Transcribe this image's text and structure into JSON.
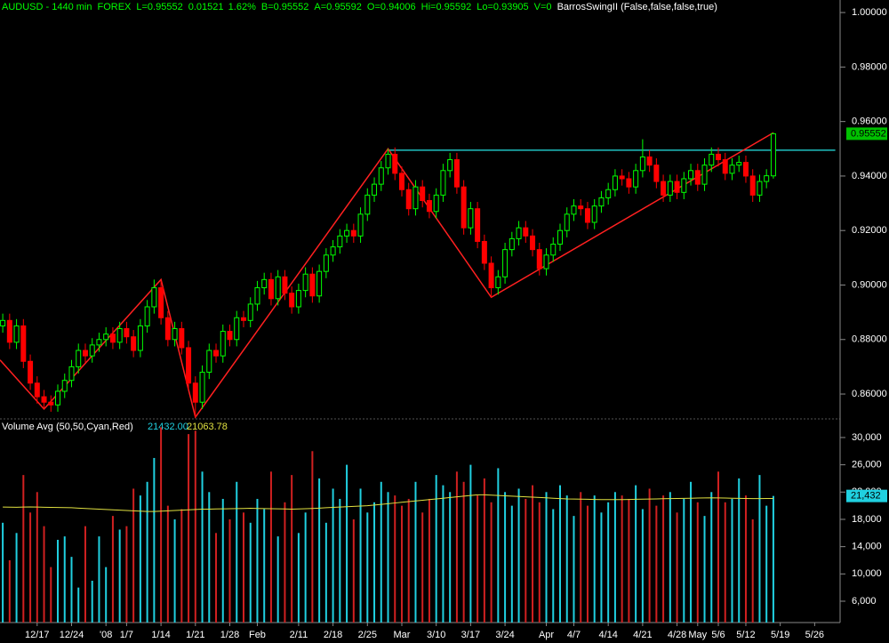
{
  "chart_data": [
    {
      "type": "candlestick",
      "header": [
        "AUDUSD - 1440 min",
        "FOREX",
        "L=0.95552",
        "0.01521",
        "1.62%",
        "B=0.95552",
        "A=0.95592",
        "O=0.94006",
        "Hi=0.95592",
        "Lo=0.93905",
        "V=0",
        "BarrosSwingII (False,false,false,true)"
      ],
      "up_color": "#00ff00",
      "down_color": "#ff0000",
      "xlim": [
        -0.4,
        121.7
      ],
      "ylim": [
        0.8512,
        1.0046
      ],
      "yticks": [
        {
          "value": 0.86,
          "label": "0.86000"
        },
        {
          "value": 0.88,
          "label": "0.88000"
        },
        {
          "value": 0.9,
          "label": "0.90000"
        },
        {
          "value": 0.92,
          "label": "0.92000"
        },
        {
          "value": 0.94,
          "label": "0.94000"
        },
        {
          "value": 0.96,
          "label": "0.96000"
        },
        {
          "value": 0.98,
          "label": "0.98000"
        },
        {
          "value": 1.0,
          "label": "1.00000"
        }
      ],
      "last_price": 0.95552,
      "ohlc": [
        [
          0.885,
          0.8895,
          0.8825,
          0.887
        ],
        [
          0.887,
          0.8895,
          0.8765,
          0.879
        ],
        [
          0.879,
          0.8875,
          0.8765,
          0.885
        ],
        [
          0.885,
          0.8875,
          0.8695,
          0.872
        ],
        [
          0.872,
          0.8745,
          0.8615,
          0.864
        ],
        [
          0.864,
          0.8665,
          0.8565,
          0.859
        ],
        [
          0.859,
          0.8615,
          0.8545,
          0.857
        ],
        [
          0.857,
          0.8595,
          0.8535,
          0.856
        ],
        [
          0.856,
          0.8635,
          0.8535,
          0.861
        ],
        [
          0.861,
          0.8675,
          0.8585,
          0.865
        ],
        [
          0.865,
          0.8725,
          0.8625,
          0.87
        ],
        [
          0.87,
          0.8785,
          0.8675,
          0.876
        ],
        [
          0.876,
          0.8785,
          0.8715,
          0.874
        ],
        [
          0.874,
          0.8805,
          0.8715,
          0.878
        ],
        [
          0.878,
          0.8825,
          0.8755,
          0.88
        ],
        [
          0.88,
          0.8845,
          0.8775,
          0.882
        ],
        [
          0.882,
          0.8845,
          0.8765,
          0.879
        ],
        [
          0.879,
          0.8865,
          0.8765,
          0.884
        ],
        [
          0.884,
          0.8865,
          0.8785,
          0.881
        ],
        [
          0.881,
          0.8835,
          0.8735,
          0.876
        ],
        [
          0.876,
          0.8875,
          0.8735,
          0.885
        ],
        [
          0.885,
          0.8945,
          0.8825,
          0.892
        ],
        [
          0.892,
          0.902,
          0.8895,
          0.899
        ],
        [
          0.899,
          0.9015,
          0.8855,
          0.888
        ],
        [
          0.888,
          0.8905,
          0.8775,
          0.88
        ],
        [
          0.88,
          0.8865,
          0.8775,
          0.884
        ],
        [
          0.884,
          0.8865,
          0.8745,
          0.877
        ],
        [
          0.877,
          0.8795,
          0.8615,
          0.864
        ],
        [
          0.864,
          0.8665,
          0.8515,
          0.857
        ],
        [
          0.857,
          0.8705,
          0.8545,
          0.868
        ],
        [
          0.868,
          0.8785,
          0.8655,
          0.876
        ],
        [
          0.876,
          0.8785,
          0.8715,
          0.874
        ],
        [
          0.874,
          0.8855,
          0.8715,
          0.883
        ],
        [
          0.883,
          0.8855,
          0.8775,
          0.88
        ],
        [
          0.88,
          0.8905,
          0.8775,
          0.888
        ],
        [
          0.888,
          0.8905,
          0.8845,
          0.887
        ],
        [
          0.887,
          0.8955,
          0.8845,
          0.893
        ],
        [
          0.893,
          0.9015,
          0.8905,
          0.899
        ],
        [
          0.899,
          0.9045,
          0.8965,
          0.902
        ],
        [
          0.902,
          0.9045,
          0.8925,
          0.895
        ],
        [
          0.895,
          0.9055,
          0.8925,
          0.903
        ],
        [
          0.903,
          0.9055,
          0.8945,
          0.897
        ],
        [
          0.897,
          0.8995,
          0.8895,
          0.892
        ],
        [
          0.892,
          0.9005,
          0.8895,
          0.898
        ],
        [
          0.898,
          0.9065,
          0.8955,
          0.904
        ],
        [
          0.904,
          0.9065,
          0.8935,
          0.896
        ],
        [
          0.896,
          0.9075,
          0.8935,
          0.905
        ],
        [
          0.905,
          0.9135,
          0.9025,
          0.911
        ],
        [
          0.911,
          0.9165,
          0.9085,
          0.914
        ],
        [
          0.914,
          0.9205,
          0.9115,
          0.918
        ],
        [
          0.918,
          0.9225,
          0.9155,
          0.92
        ],
        [
          0.92,
          0.9225,
          0.9155,
          0.918
        ],
        [
          0.918,
          0.9285,
          0.9155,
          0.926
        ],
        [
          0.926,
          0.9355,
          0.9235,
          0.933
        ],
        [
          0.933,
          0.9395,
          0.9305,
          0.937
        ],
        [
          0.937,
          0.9455,
          0.9345,
          0.943
        ],
        [
          0.943,
          0.95,
          0.9405,
          0.948
        ],
        [
          0.948,
          0.9505,
          0.9385,
          0.941
        ],
        [
          0.941,
          0.9435,
          0.9325,
          0.935
        ],
        [
          0.935,
          0.9375,
          0.9255,
          0.928
        ],
        [
          0.928,
          0.9385,
          0.9255,
          0.936
        ],
        [
          0.936,
          0.9385,
          0.9285,
          0.931
        ],
        [
          0.931,
          0.9335,
          0.9245,
          0.927
        ],
        [
          0.927,
          0.9355,
          0.9245,
          0.933
        ],
        [
          0.933,
          0.9445,
          0.9305,
          0.942
        ],
        [
          0.942,
          0.9485,
          0.9395,
          0.946
        ],
        [
          0.946,
          0.9485,
          0.9335,
          0.936
        ],
        [
          0.936,
          0.9385,
          0.9185,
          0.921
        ],
        [
          0.921,
          0.9305,
          0.9185,
          0.928
        ],
        [
          0.928,
          0.9305,
          0.9135,
          0.916
        ],
        [
          0.916,
          0.9185,
          0.9055,
          0.908
        ],
        [
          0.908,
          0.9105,
          0.8955,
          0.899
        ],
        [
          0.899,
          0.9055,
          0.8965,
          0.903
        ],
        [
          0.903,
          0.9155,
          0.9005,
          0.913
        ],
        [
          0.913,
          0.9195,
          0.9105,
          0.917
        ],
        [
          0.917,
          0.9235,
          0.9145,
          0.921
        ],
        [
          0.921,
          0.9235,
          0.9155,
          0.918
        ],
        [
          0.918,
          0.9205,
          0.9105,
          0.913
        ],
        [
          0.913,
          0.9155,
          0.9035,
          0.906
        ],
        [
          0.906,
          0.9135,
          0.9035,
          0.911
        ],
        [
          0.911,
          0.9175,
          0.9085,
          0.915
        ],
        [
          0.915,
          0.9225,
          0.9125,
          0.92
        ],
        [
          0.92,
          0.9285,
          0.9175,
          0.926
        ],
        [
          0.926,
          0.9315,
          0.9235,
          0.929
        ],
        [
          0.929,
          0.9315,
          0.9255,
          0.928
        ],
        [
          0.928,
          0.9305,
          0.9205,
          0.923
        ],
        [
          0.923,
          0.9315,
          0.9205,
          0.929
        ],
        [
          0.929,
          0.9345,
          0.9265,
          0.932
        ],
        [
          0.932,
          0.9375,
          0.9295,
          0.935
        ],
        [
          0.935,
          0.9425,
          0.9325,
          0.94
        ],
        [
          0.94,
          0.9425,
          0.9365,
          0.939
        ],
        [
          0.939,
          0.9415,
          0.9335,
          0.936
        ],
        [
          0.936,
          0.9445,
          0.9335,
          0.942
        ],
        [
          0.942,
          0.9535,
          0.9395,
          0.947
        ],
        [
          0.947,
          0.9495,
          0.9415,
          0.944
        ],
        [
          0.944,
          0.9465,
          0.9355,
          0.938
        ],
        [
          0.938,
          0.9405,
          0.9305,
          0.933
        ],
        [
          0.933,
          0.9405,
          0.9305,
          0.938
        ],
        [
          0.938,
          0.9405,
          0.9315,
          0.934
        ],
        [
          0.934,
          0.9415,
          0.9315,
          0.939
        ],
        [
          0.939,
          0.9445,
          0.9365,
          0.942
        ],
        [
          0.942,
          0.9445,
          0.9345,
          0.937
        ],
        [
          0.937,
          0.9465,
          0.9345,
          0.944
        ],
        [
          0.944,
          0.9505,
          0.9415,
          0.948
        ],
        [
          0.948,
          0.9505,
          0.9435,
          0.946
        ],
        [
          0.946,
          0.9485,
          0.9385,
          0.941
        ],
        [
          0.941,
          0.9465,
          0.9385,
          0.944
        ],
        [
          0.944,
          0.9475,
          0.9415,
          0.945
        ],
        [
          0.945,
          0.9475,
          0.9375,
          0.94
        ],
        [
          0.94,
          0.9425,
          0.9305,
          0.933
        ],
        [
          0.933,
          0.9405,
          0.9305,
          0.938
        ],
        [
          0.938,
          0.9425,
          0.9355,
          0.9401
        ],
        [
          0.94006,
          0.95592,
          0.93905,
          0.95552
        ]
      ],
      "swing": {
        "color": "#ff2020",
        "x": [
          -0.4,
          6,
          23,
          28,
          56,
          71,
          112
        ],
        "values": [
          0.8725,
          0.8545,
          0.902,
          0.8515,
          0.95,
          0.8955,
          0.9559
        ]
      },
      "level": {
        "color": "#20c0c0",
        "x": [
          56,
          121
        ],
        "values": [
          0.9495,
          0.9495
        ]
      }
    },
    {
      "type": "volume",
      "title": "Volume Avg (50,50,Cyan,Red)",
      "readouts": [
        "21432.00",
        "21063.78"
      ],
      "up_color": "#20d0e0",
      "down_color": "#d02020",
      "avg_color": "#e0e040",
      "xlim": [
        -0.4,
        121.7
      ],
      "ylim": [
        2870,
        32600
      ],
      "yticks": [
        {
          "value": 6000,
          "label": "6,000"
        },
        {
          "value": 10000,
          "label": "10,000"
        },
        {
          "value": 14000,
          "label": "14,000"
        },
        {
          "value": 18000,
          "label": "18,000"
        },
        {
          "value": 22000,
          "label": "22,000"
        },
        {
          "value": 26000,
          "label": "26,000"
        },
        {
          "value": 30000,
          "label": "30,000"
        }
      ],
      "xticks": [
        {
          "value": 5,
          "label": "12/17"
        },
        {
          "value": 10,
          "label": "12/24"
        },
        {
          "value": 15,
          "label": "'08"
        },
        {
          "value": 18,
          "label": "1/7"
        },
        {
          "value": 23,
          "label": "1/14"
        },
        {
          "value": 28,
          "label": "1/21"
        },
        {
          "value": 33,
          "label": "1/28"
        },
        {
          "value": 37,
          "label": "Feb"
        },
        {
          "value": 43,
          "label": "2/11"
        },
        {
          "value": 48,
          "label": "2/18"
        },
        {
          "value": 53,
          "label": "2/25"
        },
        {
          "value": 58,
          "label": "Mar"
        },
        {
          "value": 63,
          "label": "3/10"
        },
        {
          "value": 68,
          "label": "3/17"
        },
        {
          "value": 73,
          "label": "3/24"
        },
        {
          "value": 79,
          "label": "Apr"
        },
        {
          "value": 83,
          "label": "4/7"
        },
        {
          "value": 88,
          "label": "4/14"
        },
        {
          "value": 93,
          "label": "4/21"
        },
        {
          "value": 98,
          "label": "4/28"
        },
        {
          "value": 101,
          "label": "May"
        },
        {
          "value": 104,
          "label": "5/6"
        },
        {
          "value": 108,
          "label": "5/12"
        },
        {
          "value": 113,
          "label": "5/19"
        },
        {
          "value": 118,
          "label": "5/26"
        }
      ],
      "last_label": "21,432",
      "values": [
        17500,
        12000,
        16000,
        24500,
        19000,
        22000,
        17000,
        11000,
        15000,
        15500,
        12500,
        8000,
        17000,
        9000,
        15500,
        11000,
        18500,
        16500,
        17000,
        22500,
        21500,
        23500,
        27000,
        31500,
        20000,
        18000,
        19500,
        30500,
        31000,
        25000,
        22000,
        16000,
        21000,
        18000,
        23500,
        19000,
        17500,
        21000,
        19500,
        25000,
        15500,
        20500,
        24500,
        16000,
        19000,
        28000,
        24000,
        17500,
        22500,
        21000,
        26000,
        18000,
        22500,
        19000,
        20500,
        23500,
        22000,
        21500,
        20000,
        21000,
        23500,
        19000,
        21000,
        24500,
        23000,
        22000,
        25000,
        23500,
        26000,
        21500,
        24000,
        20500,
        25500,
        22000,
        20000,
        22500,
        21000,
        23000,
        20500,
        22000,
        19500,
        23000,
        21500,
        18500,
        22000,
        20000,
        21500,
        19000,
        20500,
        22000,
        21500,
        21000,
        23000,
        19500,
        22500,
        20000,
        21500,
        22000,
        19000,
        21000,
        23500,
        20500,
        18500,
        22000,
        25000,
        20500,
        21000,
        24000,
        21500,
        18000,
        24500,
        20000,
        21432
      ],
      "avg": [
        19800,
        19790,
        19780,
        19800,
        19820,
        19800,
        19780,
        19760,
        19740,
        19720,
        19700,
        19650,
        19600,
        19550,
        19500,
        19450,
        19400,
        19350,
        19300,
        19250,
        19200,
        19150,
        19150,
        19200,
        19250,
        19300,
        19350,
        19400,
        19450,
        19500,
        19500,
        19520,
        19540,
        19560,
        19580,
        19600,
        19620,
        19600,
        19580,
        19560,
        19540,
        19520,
        19500,
        19520,
        19560,
        19600,
        19650,
        19700,
        19750,
        19800,
        19850,
        19900,
        19950,
        20000,
        20100,
        20200,
        20300,
        20400,
        20500,
        20600,
        20700,
        20800,
        20900,
        21000,
        21100,
        21200,
        21300,
        21400,
        21500,
        21600,
        21600,
        21550,
        21500,
        21450,
        21400,
        21350,
        21300,
        21250,
        21200,
        21150,
        21100,
        21050,
        21000,
        20980,
        20960,
        20940,
        20920,
        20900,
        20900,
        20900,
        20900,
        20920,
        20940,
        20960,
        20980,
        21000,
        21020,
        21040,
        21060,
        21080,
        21100,
        21120,
        21140,
        21160,
        21140,
        21120,
        21100,
        21080,
        21060,
        21050,
        21050,
        21060,
        21063.78
      ]
    }
  ]
}
